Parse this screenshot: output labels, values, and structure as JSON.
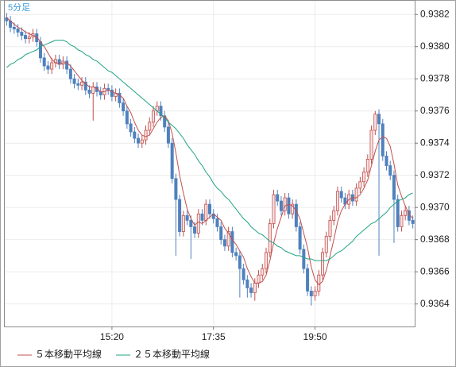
{
  "chart_data": {
    "type": "candlestick",
    "title": "5分足",
    "categories": [
      null,
      null,
      null,
      null,
      null,
      null,
      null,
      null,
      null,
      null,
      null,
      null,
      null,
      null,
      null,
      null,
      null,
      null,
      null,
      null,
      null,
      null,
      null,
      null,
      null,
      null,
      null,
      null,
      "15:20",
      null,
      null,
      null,
      null,
      null,
      null,
      null,
      null,
      null,
      null,
      null,
      null,
      null,
      null,
      null,
      null,
      null,
      null,
      null,
      null,
      null,
      null,
      null,
      null,
      null,
      null,
      "17:35",
      null,
      null,
      null,
      null,
      null,
      null,
      null,
      null,
      null,
      null,
      null,
      null,
      null,
      null,
      null,
      null,
      null,
      null,
      null,
      null,
      null,
      null,
      null,
      null,
      null,
      null,
      "19:50",
      null,
      null,
      null,
      null,
      null,
      null,
      null,
      null,
      null,
      null,
      null,
      null,
      null,
      null,
      null,
      null,
      null,
      null,
      null,
      null,
      null,
      null,
      null,
      null,
      null,
      null
    ],
    "open": [
      0.93818,
      0.93816,
      0.93812,
      0.93811,
      0.93809,
      0.93807,
      0.93805,
      0.93806,
      0.93808,
      0.93803,
      0.93793,
      0.93788,
      0.93786,
      0.9379,
      0.93792,
      0.93789,
      0.93791,
      0.93786,
      0.9378,
      0.93777,
      0.93776,
      0.93778,
      0.93773,
      0.93771,
      0.93775,
      0.93772,
      0.9377,
      0.93774,
      0.93773,
      0.93769,
      0.93771,
      0.93765,
      0.9376,
      0.93752,
      0.93747,
      0.93743,
      0.9374,
      0.93742,
      0.93748,
      0.93753,
      0.9376,
      0.93763,
      0.93757,
      0.9375,
      0.9374,
      0.93718,
      0.93705,
      0.93685,
      0.93695,
      0.93692,
      0.93688,
      0.93684,
      0.93696,
      0.93692,
      0.93702,
      0.93696,
      0.93693,
      0.93688,
      0.9368,
      0.93676,
      0.93685,
      0.93672,
      0.9367,
      0.93662,
      0.93655,
      0.9365,
      0.93647,
      0.93653,
      0.93658,
      0.93662,
      0.93672,
      0.9369,
      0.93708,
      0.93704,
      0.93698,
      0.93706,
      0.93696,
      0.93702,
      0.93688,
      0.93674,
      0.93662,
      0.93648,
      0.93645,
      0.93648,
      0.93658,
      0.93672,
      0.93682,
      0.93692,
      0.93698,
      0.9371,
      0.93706,
      0.93702,
      0.93708,
      0.93704,
      0.93712,
      0.93716,
      0.93722,
      0.9373,
      0.93748,
      0.93758,
      0.93752,
      0.93732,
      0.93726,
      0.9372,
      0.93705,
      0.93688,
      0.93695,
      0.93698,
      0.93692
    ],
    "high": [
      0.93821,
      0.93819,
      0.93815,
      0.93814,
      0.93812,
      0.9381,
      0.93809,
      0.93811,
      0.93811,
      0.93806,
      0.93796,
      0.93791,
      0.93793,
      0.93795,
      0.93795,
      0.93794,
      0.93794,
      0.93789,
      0.93783,
      0.9378,
      0.93781,
      0.93781,
      0.93776,
      0.93778,
      0.93778,
      0.93775,
      0.93777,
      0.93777,
      0.93776,
      0.93774,
      0.93774,
      0.93768,
      0.93763,
      0.93755,
      0.9375,
      0.93746,
      0.93745,
      0.93751,
      0.93756,
      0.93763,
      0.93766,
      0.93766,
      0.9376,
      0.93753,
      0.93743,
      0.93721,
      0.93708,
      0.93698,
      0.93698,
      0.93695,
      0.93691,
      0.93699,
      0.93699,
      0.93705,
      0.93705,
      0.93699,
      0.93696,
      0.93691,
      0.93683,
      0.93688,
      0.93688,
      0.93675,
      0.93673,
      0.93665,
      0.93658,
      0.93653,
      0.93656,
      0.93661,
      0.93665,
      0.93675,
      0.93693,
      0.93711,
      0.93711,
      0.93707,
      0.93709,
      0.93709,
      0.93705,
      0.93705,
      0.93691,
      0.93677,
      0.93665,
      0.93651,
      0.93651,
      0.93661,
      0.93675,
      0.93685,
      0.93695,
      0.93701,
      0.93713,
      0.93713,
      0.93709,
      0.93711,
      0.93711,
      0.93715,
      0.93719,
      0.93725,
      0.93733,
      0.93751,
      0.9376,
      0.93761,
      0.93755,
      0.93735,
      0.93729,
      0.93723,
      0.93708,
      0.93698,
      0.93701,
      0.93701,
      0.93695
    ],
    "low": [
      0.93813,
      0.93809,
      0.93808,
      0.93806,
      0.93804,
      0.93802,
      0.93802,
      0.93803,
      0.938,
      0.9379,
      0.93785,
      0.93783,
      0.93783,
      0.93787,
      0.93786,
      0.93786,
      0.93783,
      0.93777,
      0.93774,
      0.93773,
      0.93773,
      0.9377,
      0.93768,
      0.93754,
      0.93769,
      0.93767,
      0.93767,
      0.9377,
      0.93766,
      0.93766,
      0.93762,
      0.93757,
      0.93749,
      0.93744,
      0.9374,
      0.93737,
      0.93737,
      0.93739,
      0.93745,
      0.9375,
      0.93757,
      0.93754,
      0.93747,
      0.93737,
      0.93715,
      0.9367,
      0.93682,
      0.93682,
      0.93689,
      0.93668,
      0.93681,
      0.93681,
      0.93689,
      0.93689,
      0.93693,
      0.9369,
      0.93685,
      0.93677,
      0.93673,
      0.93673,
      0.93669,
      0.93667,
      0.93644,
      0.93652,
      0.93644,
      0.93644,
      0.93642,
      0.9365,
      0.93655,
      0.93659,
      0.93669,
      0.93687,
      0.93701,
      0.93695,
      0.93695,
      0.93693,
      0.93693,
      0.93685,
      0.93671,
      0.93659,
      0.93645,
      0.93639,
      0.93642,
      0.93645,
      0.93655,
      0.93669,
      0.93679,
      0.93689,
      0.93695,
      0.93703,
      0.93699,
      0.93699,
      0.93701,
      0.93701,
      0.93709,
      0.93713,
      0.93719,
      0.93727,
      0.93745,
      0.9367,
      0.93729,
      0.93723,
      0.93717,
      0.93678,
      0.93685,
      0.93685,
      0.93692,
      0.93689,
      0.93687
    ],
    "close": [
      0.93816,
      0.93812,
      0.93811,
      0.93809,
      0.93807,
      0.93805,
      0.93806,
      0.93808,
      0.93803,
      0.93793,
      0.93788,
      0.93786,
      0.9379,
      0.93792,
      0.93789,
      0.93791,
      0.93786,
      0.9378,
      0.93777,
      0.93776,
      0.93778,
      0.93773,
      0.93771,
      0.93775,
      0.93772,
      0.9377,
      0.93774,
      0.93773,
      0.93769,
      0.93771,
      0.93765,
      0.9376,
      0.93752,
      0.93747,
      0.93743,
      0.9374,
      0.93742,
      0.93748,
      0.93753,
      0.9376,
      0.93763,
      0.93757,
      0.9375,
      0.9374,
      0.93718,
      0.93705,
      0.93685,
      0.93695,
      0.93692,
      0.93688,
      0.93684,
      0.93696,
      0.93692,
      0.93702,
      0.93696,
      0.93693,
      0.93688,
      0.9368,
      0.93676,
      0.93685,
      0.93672,
      0.9367,
      0.93662,
      0.93655,
      0.9365,
      0.93647,
      0.93653,
      0.93658,
      0.93662,
      0.93672,
      0.9369,
      0.93708,
      0.93704,
      0.93698,
      0.93706,
      0.93696,
      0.93702,
      0.93688,
      0.93674,
      0.93662,
      0.93648,
      0.93645,
      0.93648,
      0.93658,
      0.93672,
      0.93682,
      0.93692,
      0.93698,
      0.9371,
      0.93706,
      0.93702,
      0.93708,
      0.93704,
      0.93712,
      0.93716,
      0.93722,
      0.9373,
      0.93748,
      0.93758,
      0.93752,
      0.93732,
      0.93726,
      0.9372,
      0.93705,
      0.93688,
      0.93695,
      0.93698,
      0.93692,
      0.9369
    ],
    "up_color": "#c0504d",
    "down_color": "#4f81bd",
    "series": [
      {
        "name": "５本移動平均線",
        "color": "#c0504d",
        "values": [
          0.93818,
          0.93816,
          0.93814,
          0.93812,
          0.93811,
          0.93809,
          0.93808,
          0.93807,
          0.93806,
          0.93803,
          0.938,
          0.93796,
          0.93792,
          0.9379,
          0.93789,
          0.9379,
          0.9379,
          0.93788,
          0.93785,
          0.93782,
          0.93779,
          0.93777,
          0.93775,
          0.93775,
          0.93774,
          0.93772,
          0.93772,
          0.93773,
          0.93772,
          0.93771,
          0.9377,
          0.93768,
          0.93763,
          0.93759,
          0.93753,
          0.93748,
          0.93745,
          0.93744,
          0.93745,
          0.93749,
          0.93753,
          0.93756,
          0.93757,
          0.93754,
          0.93746,
          0.93734,
          0.9372,
          0.93709,
          0.93699,
          0.93693,
          0.93689,
          0.93691,
          0.9369,
          0.93692,
          0.93694,
          0.93696,
          0.93694,
          0.93692,
          0.93687,
          0.93684,
          0.9368,
          0.93677,
          0.93673,
          0.93669,
          0.93662,
          0.93657,
          0.93653,
          0.93653,
          0.93654,
          0.93658,
          0.93667,
          0.93678,
          0.93687,
          0.93694,
          0.93701,
          0.93702,
          0.93701,
          0.93698,
          0.93693,
          0.93684,
          0.93675,
          0.93663,
          0.93655,
          0.93652,
          0.93654,
          0.93661,
          0.9367,
          0.9368,
          0.93691,
          0.93698,
          0.93702,
          0.93705,
          0.93706,
          0.93706,
          0.93708,
          0.93712,
          0.93717,
          0.93726,
          0.93735,
          0.93742,
          0.93744,
          0.93743,
          0.93738,
          0.93727,
          0.93714,
          0.93707,
          0.93701,
          0.93696,
          0.93693
        ]
      },
      {
        "name": "２５本移動平均線",
        "color": "#1fa383",
        "values": [
          0.93787,
          0.93789,
          0.9379,
          0.93792,
          0.93793,
          0.93795,
          0.93796,
          0.93797,
          0.93798,
          0.938,
          0.93801,
          0.93802,
          0.93803,
          0.93804,
          0.93804,
          0.93804,
          0.93803,
          0.93801,
          0.938,
          0.93798,
          0.93797,
          0.93795,
          0.93794,
          0.93792,
          0.93791,
          0.93789,
          0.93787,
          0.93785,
          0.93784,
          0.93782,
          0.9378,
          0.93778,
          0.93776,
          0.93774,
          0.93772,
          0.9377,
          0.93768,
          0.93766,
          0.93764,
          0.93762,
          0.9376,
          0.93758,
          0.93756,
          0.93753,
          0.93751,
          0.93749,
          0.93746,
          0.93743,
          0.93739,
          0.93736,
          0.93733,
          0.93729,
          0.93726,
          0.93722,
          0.93719,
          0.93715,
          0.93712,
          0.9371,
          0.93707,
          0.93705,
          0.93702,
          0.93699,
          0.93696,
          0.93693,
          0.93691,
          0.93688,
          0.93686,
          0.93684,
          0.93683,
          0.93681,
          0.93679,
          0.93678,
          0.93676,
          0.93675,
          0.93673,
          0.93672,
          0.93671,
          0.9367,
          0.9367,
          0.93669,
          0.93668,
          0.93668,
          0.93667,
          0.93667,
          0.93667,
          0.93667,
          0.93668,
          0.9367,
          0.93672,
          0.93673,
          0.93675,
          0.93677,
          0.93679,
          0.93682,
          0.93684,
          0.93686,
          0.93688,
          0.9369,
          0.93691,
          0.93693,
          0.93695,
          0.93697,
          0.937,
          0.93702,
          0.93704,
          0.93705,
          0.93706,
          0.93708,
          0.93709
        ]
      }
    ],
    "ylim": [
      0.93626,
      0.93829
    ],
    "yticks": [
      0.9364,
      0.9366,
      0.9368,
      {
        "value": 0.937,
        "label": "0.9370"
      },
      0.9372,
      0.9374,
      0.9376,
      0.9378,
      {
        "value": 0.938,
        "label": "0.9380"
      },
      0.9382
    ],
    "grid": true
  }
}
